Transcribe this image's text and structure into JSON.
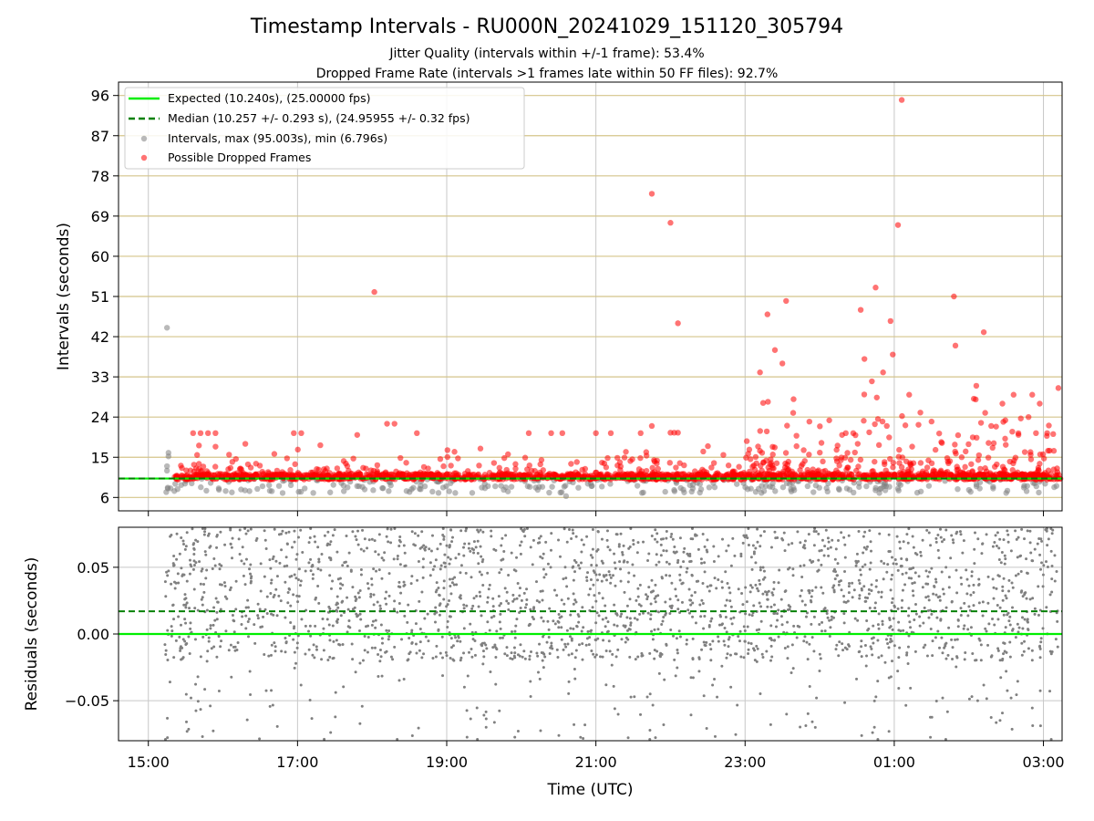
{
  "chart_data": [
    {
      "type": "scatter",
      "title": "Timestamp Intervals - RU000N_20241029_151120_305794",
      "subtitle_lines": [
        "Jitter Quality (intervals within +/-1 frame): 53.4%",
        "Dropped Frame Rate (intervals >1 frames late within 50 FF files): 92.7%"
      ],
      "ylabel": "Intervals (seconds)",
      "xlim_hours": [
        14.6,
        27.25
      ],
      "ylim": [
        3,
        99
      ],
      "y_ticks": [
        6,
        15,
        24,
        33,
        42,
        51,
        60,
        69,
        78,
        87,
        96
      ],
      "y_tick_labels": [
        "6",
        "15",
        "24",
        "33",
        "42",
        "51",
        "60",
        "69",
        "78",
        "87",
        "96"
      ],
      "grid": "on",
      "legend_position": "upper-left",
      "legend": [
        "Expected (10.240s), (25.00000 fps)",
        "Median (10.257 +/- 0.293 s), (24.95955 +/- 0.32 fps)",
        "Intervals, max (95.003s), min (6.796s)",
        "Possible Dropped Frames"
      ],
      "expected_value": 10.24,
      "median_value": 10.257,
      "colors": {
        "expected": "#00ee00",
        "median": "#008000",
        "intervals": "#808080",
        "dropped": "#ff0000",
        "hgrid": "#d4c48a",
        "vgrid": "#c8c8c8"
      },
      "dropped_outliers": [
        {
          "t": 18.03,
          "y": 52
        },
        {
          "t": 21.75,
          "y": 74
        },
        {
          "t": 22.0,
          "y": 67.5
        },
        {
          "t": 22.1,
          "y": 45
        },
        {
          "t": 23.3,
          "y": 47
        },
        {
          "t": 23.4,
          "y": 39
        },
        {
          "t": 23.55,
          "y": 50
        },
        {
          "t": 23.2,
          "y": 34
        },
        {
          "t": 23.5,
          "y": 36
        },
        {
          "t": 23.65,
          "y": 28
        },
        {
          "t": 24.3,
          "y": 20
        },
        {
          "t": 24.55,
          "y": 48
        },
        {
          "t": 24.6,
          "y": 37
        },
        {
          "t": 24.7,
          "y": 32
        },
        {
          "t": 24.75,
          "y": 53
        },
        {
          "t": 24.85,
          "y": 34
        },
        {
          "t": 24.95,
          "y": 45.5
        },
        {
          "t": 24.98,
          "y": 38
        },
        {
          "t": 25.05,
          "y": 67
        },
        {
          "t": 25.1,
          "y": 95
        },
        {
          "t": 25.2,
          "y": 29
        },
        {
          "t": 25.35,
          "y": 25
        },
        {
          "t": 25.8,
          "y": 51
        },
        {
          "t": 25.82,
          "y": 40
        },
        {
          "t": 26.2,
          "y": 43
        },
        {
          "t": 26.1,
          "y": 31
        },
        {
          "t": 26.45,
          "y": 27
        },
        {
          "t": 26.6,
          "y": 29
        },
        {
          "t": 26.8,
          "y": 24
        },
        {
          "t": 26.85,
          "y": 29
        },
        {
          "t": 26.95,
          "y": 27
        },
        {
          "t": 27.2,
          "y": 30.5
        },
        {
          "t": 15.6,
          "y": 20.4
        },
        {
          "t": 15.7,
          "y": 20.4
        },
        {
          "t": 15.8,
          "y": 20.4
        },
        {
          "t": 15.9,
          "y": 20.4
        },
        {
          "t": 16.3,
          "y": 18
        },
        {
          "t": 16.95,
          "y": 20.4
        },
        {
          "t": 17.05,
          "y": 20.4
        },
        {
          "t": 17.8,
          "y": 20
        },
        {
          "t": 18.2,
          "y": 22.5
        },
        {
          "t": 18.3,
          "y": 22.5
        },
        {
          "t": 18.6,
          "y": 20.4
        },
        {
          "t": 20.1,
          "y": 20.4
        },
        {
          "t": 20.4,
          "y": 20.4
        },
        {
          "t": 20.55,
          "y": 20.4
        },
        {
          "t": 21.0,
          "y": 20.4
        },
        {
          "t": 21.2,
          "y": 20.4
        },
        {
          "t": 21.6,
          "y": 20.4
        },
        {
          "t": 21.75,
          "y": 22
        },
        {
          "t": 22.0,
          "y": 20.5
        },
        {
          "t": 22.1,
          "y": 20.5
        },
        {
          "t": 22.05,
          "y": 20.5
        },
        {
          "t": 24.35,
          "y": 20.4
        },
        {
          "t": 24.45,
          "y": 20.4
        },
        {
          "t": 24.9,
          "y": 22
        },
        {
          "t": 25.5,
          "y": 23
        },
        {
          "t": 26.3,
          "y": 22
        },
        {
          "t": 26.9,
          "y": 20.4
        },
        {
          "t": 27.05,
          "y": 20.4
        }
      ],
      "dense_zone": {
        "start": 23.0,
        "end": 27.25
      }
    },
    {
      "type": "scatter",
      "ylabel": "Residuals (seconds)",
      "xlabel": "Time (UTC)",
      "ylim": [
        -0.08,
        0.08
      ],
      "y_ticks": [
        -0.05,
        0.0,
        0.05
      ],
      "y_tick_labels": [
        "−0.05",
        "0.00",
        "0.05"
      ],
      "x_ticks": [
        15,
        17,
        19,
        21,
        23,
        25,
        27
      ],
      "x_tick_labels": [
        "15:00",
        "17:00",
        "19:00",
        "21:00",
        "23:00",
        "01:00",
        "03:00"
      ],
      "expected_value": 0.0,
      "median_value": 0.017,
      "grid": "on"
    }
  ]
}
